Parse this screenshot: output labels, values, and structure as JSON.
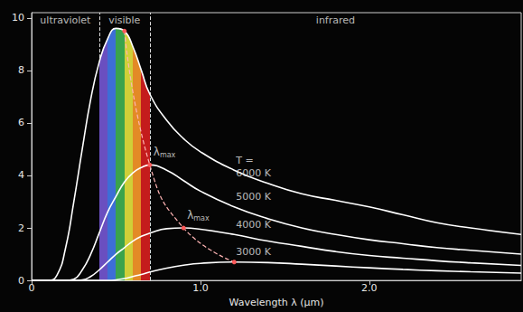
{
  "chart_data": {
    "type": "line",
    "xlabel": "Wavelength λ (μm)",
    "x": [
      0,
      0.1,
      0.15,
      0.2,
      0.25,
      0.3,
      0.35,
      0.4,
      0.45,
      0.5,
      0.55,
      0.6,
      0.65,
      0.7,
      0.8,
      0.9,
      1.0,
      1.2,
      1.4,
      1.6,
      1.8,
      2.0,
      2.2,
      2.4,
      2.6,
      2.9
    ],
    "series": [
      {
        "name": "6000 K",
        "color": "#ffffff",
        "values": [
          0,
          0,
          0.2,
          1.2,
          3.0,
          5.0,
          6.9,
          8.3,
          9.2,
          9.6,
          9.5,
          8.9,
          8.0,
          7.1,
          6.1,
          5.4,
          4.9,
          4.2,
          3.7,
          3.3,
          3.05,
          2.8,
          2.5,
          2.2,
          2.0,
          1.75
        ]
      },
      {
        "name": "5000 K",
        "color": "#ffffff",
        "values": [
          0,
          0,
          0,
          0,
          0.05,
          0.4,
          1.0,
          1.8,
          2.6,
          3.2,
          3.75,
          4.1,
          4.3,
          4.4,
          4.2,
          3.8,
          3.4,
          2.8,
          2.35,
          2.0,
          1.75,
          1.55,
          1.4,
          1.25,
          1.15,
          1.0
        ]
      },
      {
        "name": "4000 K",
        "color": "#ffffff",
        "values": [
          0,
          0,
          0,
          0,
          0,
          0.02,
          0.15,
          0.4,
          0.7,
          1.0,
          1.25,
          1.5,
          1.68,
          1.8,
          1.97,
          2.0,
          1.95,
          1.75,
          1.5,
          1.3,
          1.1,
          0.95,
          0.85,
          0.75,
          0.67,
          0.57
        ]
      },
      {
        "name": "3000 K",
        "color": "#ffffff",
        "values": [
          0,
          0,
          0,
          0,
          0,
          0,
          0,
          0,
          0,
          0.02,
          0.07,
          0.15,
          0.23,
          0.32,
          0.47,
          0.58,
          0.65,
          0.7,
          0.68,
          0.62,
          0.55,
          0.48,
          0.42,
          0.37,
          0.33,
          0.28
        ]
      }
    ],
    "series_label_title": "T =",
    "peaks": {
      "x": [
        0.55,
        0.7,
        0.9,
        1.2
      ],
      "y": [
        9.5,
        4.4,
        2.0,
        0.7
      ],
      "color": "#ff5a5a",
      "line_style": "dashed"
    },
    "peak_labels": [
      {
        "text": "λmax",
        "x": 0.7,
        "y": 4.4
      },
      {
        "text": "λmax",
        "x": 0.9,
        "y": 2.0
      }
    ],
    "regions": [
      {
        "text": "ultraviolet",
        "from": 0,
        "to": 0.4
      },
      {
        "text": "visible",
        "from": 0.4,
        "to": 0.7
      },
      {
        "text": "infrared",
        "from": 0.7,
        "to": 2.9
      }
    ],
    "xlim": [
      0,
      2.9
    ],
    "ylim": [
      0,
      10.2
    ],
    "xticks": [
      0,
      {
        "value": 1,
        "label": "1.0"
      },
      {
        "value": 2,
        "label": "2.0"
      }
    ],
    "yticks": [
      0,
      2,
      4,
      6,
      8,
      10
    ],
    "grid": false
  }
}
